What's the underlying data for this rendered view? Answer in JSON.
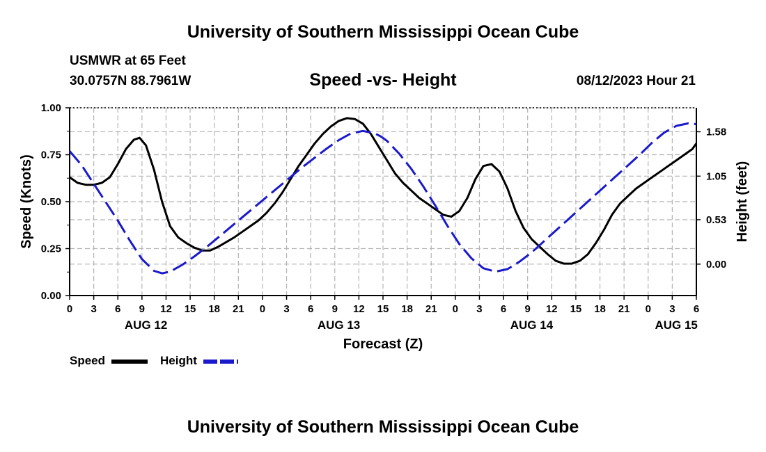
{
  "page": {
    "title_top": "University of Southern Mississippi Ocean Cube",
    "title_bottom": "University of Southern Mississippi Ocean Cube",
    "station": "USMWR at 65 Feet",
    "coords": "30.0757N  88.7961W",
    "datetime": "08/12/2023 Hour 21"
  },
  "legend": {
    "speed_label": "Speed",
    "height_label": "Height"
  },
  "colors": {
    "speed": "#000000",
    "height": "#1a1acc",
    "grid": "#b4b4b4"
  },
  "chart_data": {
    "type": "line",
    "title": "Speed -vs- Height",
    "xlabel": "Forecast (Z)",
    "ylabel": "Speed (Knots)",
    "y2label": "Height (feet)",
    "xlim": [
      0,
      78
    ],
    "ylim": [
      0,
      1
    ],
    "y2lim": [
      -0.375,
      1.866
    ],
    "x_ticks": [
      0,
      3,
      6,
      9,
      12,
      15,
      18,
      21,
      24,
      27,
      30,
      33,
      36,
      39,
      42,
      45,
      48,
      51,
      54,
      57,
      60,
      63,
      66,
      69,
      72,
      75,
      78
    ],
    "x_tick_labels": [
      "0",
      "3",
      "6",
      "9",
      "12",
      "15",
      "18",
      "21",
      "0",
      "3",
      "6",
      "9",
      "12",
      "15",
      "18",
      "21",
      "0",
      "3",
      "6",
      "9",
      "12",
      "15",
      "18",
      "21",
      "0",
      "3",
      "6"
    ],
    "y_ticks": [
      0,
      0.25,
      0.5,
      0.75,
      1.0
    ],
    "y_tick_labels": [
      "0.00",
      "0.25",
      "0.50",
      "0.75",
      "1.00"
    ],
    "y2_ticks": [
      0,
      0.53,
      1.05,
      1.58
    ],
    "y2_tick_labels": [
      "0.00",
      "0.53",
      "1.05",
      "1.58"
    ],
    "day_labels": [
      {
        "x": 9.5,
        "label": "AUG 12"
      },
      {
        "x": 33.5,
        "label": "AUG 13"
      },
      {
        "x": 57.5,
        "label": "AUG 14"
      },
      {
        "x": 75.5,
        "label": "AUG 15"
      }
    ],
    "grid": true,
    "series": [
      {
        "name": "Speed",
        "axis": "left",
        "style": "solid",
        "x": [
          0,
          1,
          2,
          3,
          4,
          5,
          6,
          7,
          8,
          8.7,
          9.5,
          10.5,
          11.5,
          12.5,
          13.5,
          14.5,
          15.5,
          16.5,
          17.5,
          18.5,
          19.5,
          20.5,
          21.5,
          22.5,
          23.5,
          24.5,
          25.5,
          26.5,
          27.5,
          28.5,
          29.5,
          30.5,
          31.5,
          32.5,
          33.5,
          34.5,
          35.5,
          36.5,
          37.5,
          38.5,
          39.5,
          40.5,
          41.5,
          42.5,
          43.5,
          44.5,
          45.5,
          46.5,
          47.5,
          48.5,
          49.5,
          50.5,
          51.5,
          52.5,
          53.5,
          54.5,
          55.5,
          56.5,
          57.5,
          58.5,
          59.5,
          60.5,
          61.5,
          62.5,
          63.5,
          64.5,
          65.5,
          66.5,
          67.5,
          68.5,
          69.5,
          70.5,
          71.5,
          72.5,
          73.5,
          74.5,
          75.5,
          76.5,
          77.5,
          78
        ],
        "y": [
          0.63,
          0.6,
          0.59,
          0.59,
          0.6,
          0.63,
          0.7,
          0.78,
          0.83,
          0.84,
          0.8,
          0.67,
          0.5,
          0.37,
          0.31,
          0.28,
          0.255,
          0.24,
          0.24,
          0.26,
          0.285,
          0.31,
          0.34,
          0.37,
          0.4,
          0.44,
          0.49,
          0.55,
          0.62,
          0.69,
          0.75,
          0.81,
          0.86,
          0.9,
          0.93,
          0.945,
          0.94,
          0.915,
          0.86,
          0.79,
          0.72,
          0.65,
          0.6,
          0.56,
          0.52,
          0.49,
          0.46,
          0.43,
          0.42,
          0.45,
          0.52,
          0.62,
          0.69,
          0.7,
          0.66,
          0.57,
          0.45,
          0.36,
          0.3,
          0.26,
          0.22,
          0.185,
          0.17,
          0.17,
          0.185,
          0.22,
          0.28,
          0.35,
          0.43,
          0.49,
          0.53,
          0.57,
          0.6,
          0.63,
          0.66,
          0.69,
          0.72,
          0.75,
          0.78,
          0.81
        ]
      },
      {
        "name": "Height",
        "axis": "right",
        "style": "dashed",
        "x": [
          0,
          1.5,
          3,
          4.5,
          6,
          7.5,
          9,
          10.5,
          11.5,
          12.5,
          14,
          15.5,
          17,
          18.5,
          20,
          21.5,
          23,
          24.5,
          26,
          27.5,
          29,
          30.5,
          32,
          33.5,
          35,
          36.5,
          38,
          38.8,
          39.5,
          41,
          42.5,
          44,
          45.5,
          47,
          48.5,
          50,
          51.5,
          53,
          54.5,
          56,
          57.5,
          59,
          60.5,
          62,
          63.5,
          65,
          66.5,
          68,
          69.5,
          71,
          72.5,
          74,
          75.5,
          77,
          78
        ],
        "y": [
          1.35,
          1.18,
          0.96,
          0.74,
          0.52,
          0.28,
          0.06,
          -0.08,
          -0.11,
          -0.09,
          -0.01,
          0.09,
          0.2,
          0.32,
          0.44,
          0.56,
          0.68,
          0.8,
          0.92,
          1.04,
          1.16,
          1.27,
          1.38,
          1.48,
          1.56,
          1.59,
          1.56,
          1.52,
          1.47,
          1.32,
          1.14,
          0.93,
          0.7,
          0.46,
          0.24,
          0.07,
          -0.05,
          -0.09,
          -0.06,
          0.03,
          0.14,
          0.27,
          0.4,
          0.53,
          0.66,
          0.79,
          0.92,
          1.05,
          1.18,
          1.31,
          1.45,
          1.57,
          1.65,
          1.68,
          1.67
        ]
      }
    ]
  }
}
